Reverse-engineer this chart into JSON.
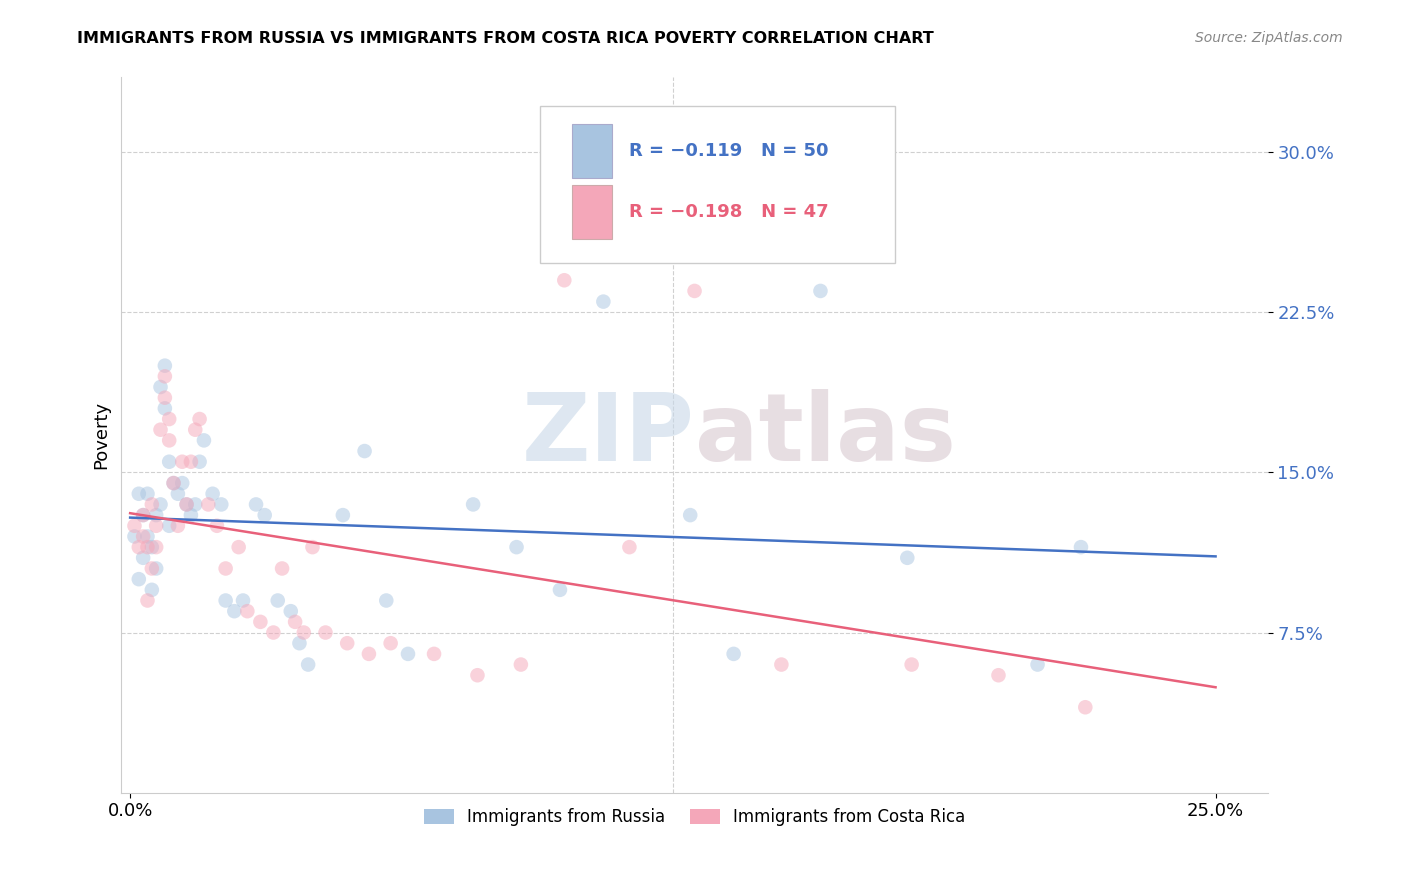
{
  "title": "IMMIGRANTS FROM RUSSIA VS IMMIGRANTS FROM COSTA RICA POVERTY CORRELATION CHART",
  "source": "Source: ZipAtlas.com",
  "ylabel": "Poverty",
  "ytick_vals": [
    0.075,
    0.15,
    0.225,
    0.3
  ],
  "ytick_labels": [
    "7.5%",
    "15.0%",
    "22.5%",
    "30.0%"
  ],
  "xtick_vals": [
    0.0,
    0.25
  ],
  "xtick_labels": [
    "0.0%",
    "25.0%"
  ],
  "xlim": [
    -0.002,
    0.262
  ],
  "ylim": [
    0.0,
    0.335
  ],
  "russia_color": "#a8c4e0",
  "costa_rica_color": "#f4a7b9",
  "russia_line_color": "#4472c4",
  "costa_rica_line_color": "#e8607a",
  "legend_r_russia": "R = −0.119",
  "legend_n_russia": "N = 50",
  "legend_r_costa_rica": "R = −0.198",
  "legend_n_costa_rica": "N = 47",
  "legend_label_russia": "Immigrants from Russia",
  "legend_label_costa_rica": "Immigrants from Costa Rica",
  "russia_x": [
    0.001,
    0.002,
    0.002,
    0.003,
    0.003,
    0.004,
    0.004,
    0.005,
    0.005,
    0.006,
    0.006,
    0.007,
    0.007,
    0.008,
    0.008,
    0.009,
    0.009,
    0.01,
    0.011,
    0.012,
    0.013,
    0.014,
    0.015,
    0.016,
    0.017,
    0.019,
    0.021,
    0.022,
    0.024,
    0.026,
    0.029,
    0.031,
    0.034,
    0.037,
    0.039,
    0.041,
    0.049,
    0.054,
    0.059,
    0.064,
    0.079,
    0.089,
    0.099,
    0.109,
    0.129,
    0.139,
    0.159,
    0.179,
    0.209,
    0.219
  ],
  "russia_y": [
    0.12,
    0.14,
    0.1,
    0.13,
    0.11,
    0.14,
    0.12,
    0.115,
    0.095,
    0.105,
    0.13,
    0.135,
    0.19,
    0.2,
    0.18,
    0.155,
    0.125,
    0.145,
    0.14,
    0.145,
    0.135,
    0.13,
    0.135,
    0.155,
    0.165,
    0.14,
    0.135,
    0.09,
    0.085,
    0.09,
    0.135,
    0.13,
    0.09,
    0.085,
    0.07,
    0.06,
    0.13,
    0.16,
    0.09,
    0.065,
    0.135,
    0.115,
    0.095,
    0.23,
    0.13,
    0.065,
    0.235,
    0.11,
    0.06,
    0.115
  ],
  "costa_rica_x": [
    0.001,
    0.002,
    0.003,
    0.003,
    0.004,
    0.004,
    0.005,
    0.005,
    0.006,
    0.006,
    0.007,
    0.008,
    0.008,
    0.009,
    0.009,
    0.01,
    0.011,
    0.012,
    0.013,
    0.014,
    0.015,
    0.016,
    0.018,
    0.02,
    0.022,
    0.025,
    0.027,
    0.03,
    0.033,
    0.035,
    0.038,
    0.04,
    0.042,
    0.045,
    0.05,
    0.055,
    0.06,
    0.07,
    0.08,
    0.09,
    0.1,
    0.115,
    0.13,
    0.15,
    0.18,
    0.2,
    0.22
  ],
  "costa_rica_y": [
    0.125,
    0.115,
    0.13,
    0.12,
    0.115,
    0.09,
    0.105,
    0.135,
    0.115,
    0.125,
    0.17,
    0.195,
    0.185,
    0.175,
    0.165,
    0.145,
    0.125,
    0.155,
    0.135,
    0.155,
    0.17,
    0.175,
    0.135,
    0.125,
    0.105,
    0.115,
    0.085,
    0.08,
    0.075,
    0.105,
    0.08,
    0.075,
    0.115,
    0.075,
    0.07,
    0.065,
    0.07,
    0.065,
    0.055,
    0.06,
    0.24,
    0.115,
    0.235,
    0.06,
    0.06,
    0.055,
    0.04
  ],
  "watermark_zip": "ZIP",
  "watermark_atlas": "atlas",
  "marker_size": 110,
  "alpha": 0.5
}
